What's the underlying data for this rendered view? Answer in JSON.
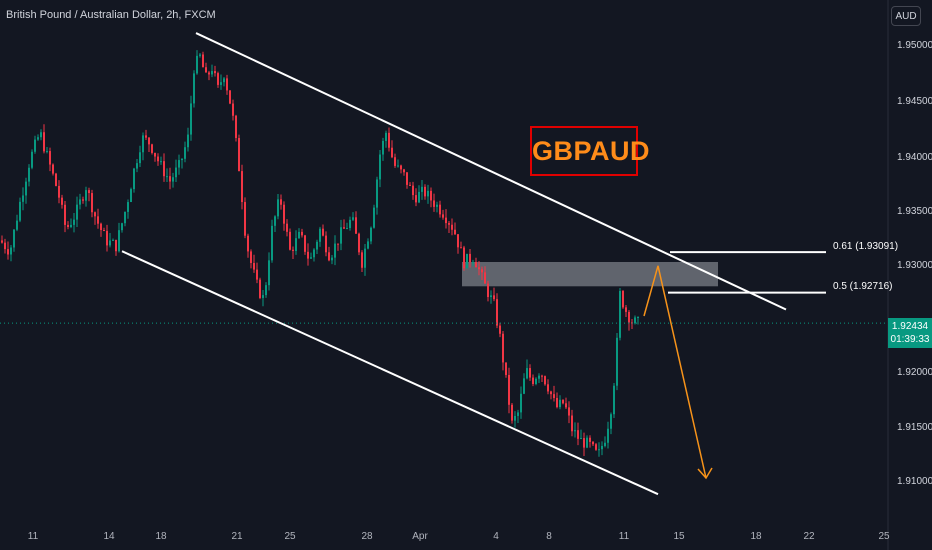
{
  "header": {
    "symbol_title": "British Pound / Australian Dollar, 2h, FXCM"
  },
  "toolbar": {
    "currency": "AUD"
  },
  "annotation": {
    "badge_text": "GBPAUD"
  },
  "fib_levels": [
    {
      "label": "0.61 (1.93091)",
      "price": 1.93091
    },
    {
      "label": "0.5 (1.92716)",
      "price": 1.92716
    }
  ],
  "current_price": {
    "value": "1.92434",
    "countdown": "01:39:33",
    "price": 1.92434
  },
  "y_axis": {
    "ticks": [
      "1.95000",
      "1.94500",
      "1.94000",
      "1.93500",
      "1.93000",
      "1.92500",
      "1.92000",
      "1.91500",
      "1.91000"
    ]
  },
  "x_axis": {
    "ticks": [
      "11",
      "14",
      "18",
      "21",
      "25",
      "28",
      "Apr",
      "4",
      "8",
      "11",
      "15",
      "18",
      "22",
      "25"
    ]
  },
  "colors": {
    "background": "#131722",
    "bull": "#089981",
    "bear": "#f23645",
    "channel": "#ffffff",
    "projection": "#f7931a",
    "zone": "#8a8d96",
    "badge_border": "#e00000",
    "badge_text": "#ff8c1a"
  },
  "chart_data": {
    "type": "candlestick",
    "instrument": "GBPAUD",
    "timeframe": "2h",
    "ylim": [
      1.9055,
      1.9535
    ],
    "close_path": [
      [
        0,
        1.932
      ],
      [
        10,
        1.931
      ],
      [
        20,
        1.9355
      ],
      [
        30,
        1.9395
      ],
      [
        40,
        1.942
      ],
      [
        48,
        1.9395
      ],
      [
        58,
        1.9365
      ],
      [
        66,
        1.933
      ],
      [
        76,
        1.9345
      ],
      [
        86,
        1.937
      ],
      [
        96,
        1.934
      ],
      [
        106,
        1.932
      ],
      [
        116,
        1.9315
      ],
      [
        126,
        1.935
      ],
      [
        134,
        1.9385
      ],
      [
        142,
        1.9415
      ],
      [
        150,
        1.941
      ],
      [
        160,
        1.939
      ],
      [
        170,
        1.9375
      ],
      [
        180,
        1.939
      ],
      [
        188,
        1.9415
      ],
      [
        194,
        1.948
      ],
      [
        200,
        1.949
      ],
      [
        206,
        1.947
      ],
      [
        212,
        1.948
      ],
      [
        218,
        1.946
      ],
      [
        224,
        1.9475
      ],
      [
        232,
        1.944
      ],
      [
        240,
        1.938
      ],
      [
        246,
        1.932
      ],
      [
        252,
        1.9295
      ],
      [
        258,
        1.9275
      ],
      [
        264,
        1.9265
      ],
      [
        272,
        1.933
      ],
      [
        280,
        1.936
      ],
      [
        290,
        1.931
      ],
      [
        300,
        1.9325
      ],
      [
        310,
        1.93
      ],
      [
        320,
        1.933
      ],
      [
        330,
        1.9305
      ],
      [
        340,
        1.9325
      ],
      [
        352,
        1.934
      ],
      [
        362,
        1.93
      ],
      [
        372,
        1.934
      ],
      [
        380,
        1.94
      ],
      [
        386,
        1.942
      ],
      [
        394,
        1.939
      ],
      [
        404,
        1.938
      ],
      [
        414,
        1.936
      ],
      [
        424,
        1.9365
      ],
      [
        434,
        1.9355
      ],
      [
        444,
        1.9345
      ],
      [
        454,
        1.933
      ],
      [
        464,
        1.93
      ],
      [
        474,
        1.9305
      ],
      [
        484,
        1.928
      ],
      [
        494,
        1.926
      ],
      [
        500,
        1.923
      ],
      [
        506,
        1.919
      ],
      [
        512,
        1.915
      ],
      [
        518,
        1.916
      ],
      [
        526,
        1.92
      ],
      [
        532,
        1.919
      ],
      [
        540,
        1.92
      ],
      [
        548,
        1.9185
      ],
      [
        556,
        1.9165
      ],
      [
        564,
        1.917
      ],
      [
        572,
        1.9145
      ],
      [
        580,
        1.9135
      ],
      [
        590,
        1.913
      ],
      [
        598,
        1.912
      ],
      [
        606,
        1.914
      ],
      [
        612,
        1.917
      ],
      [
        616,
        1.921
      ],
      [
        620,
        1.927
      ],
      [
        626,
        1.9255
      ],
      [
        632,
        1.9245
      ],
      [
        638,
        1.92434
      ]
    ],
    "channel": {
      "upper": [
        [
          196,
          1.9512
        ],
        [
          786,
          1.9256
        ]
      ],
      "lower": [
        [
          122,
          1.931
        ],
        [
          658,
          1.9085
        ]
      ]
    },
    "resistance_zone": {
      "top": 1.93,
      "bottom": 1.92775,
      "x_start": 462,
      "x_end": 718
    },
    "projection": [
      [
        644,
        1.925
      ],
      [
        658,
        1.92965
      ],
      [
        706,
        1.91
      ]
    ]
  }
}
